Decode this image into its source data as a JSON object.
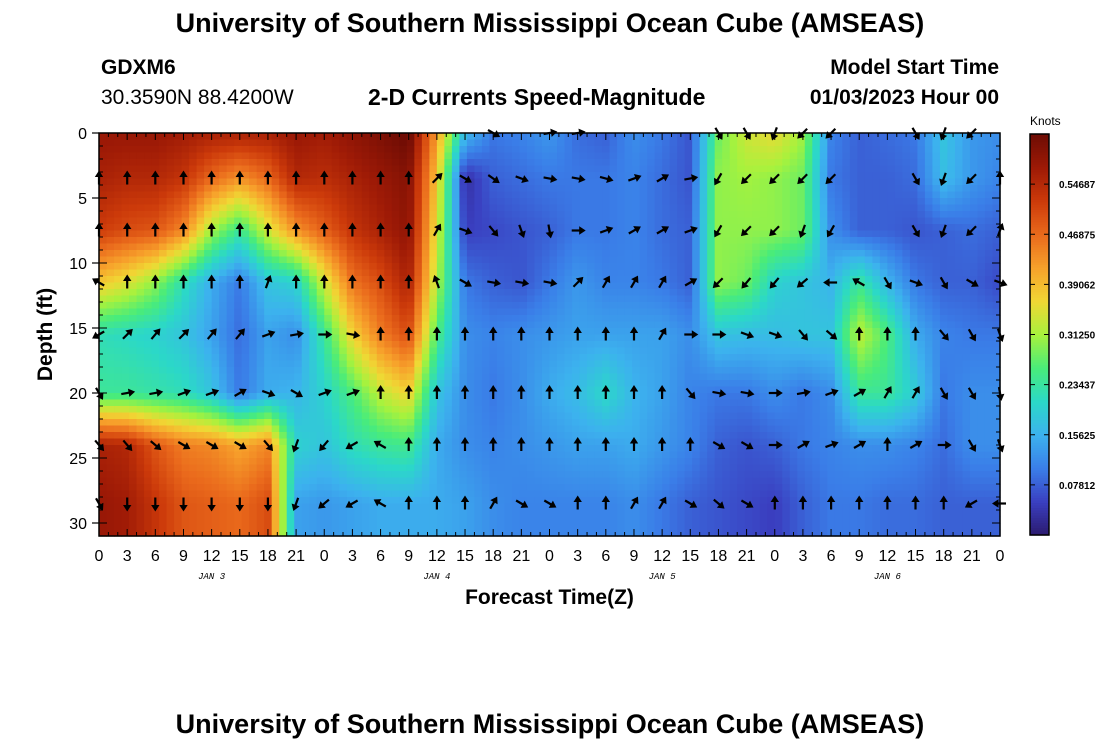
{
  "header": {
    "title": "University of Southern Mississippi Ocean Cube (AMSEAS)",
    "station": "GDXM6",
    "coords": "30.3590N  88.4200W",
    "subtitle": "2-D Currents Speed-Magnitude",
    "model_start_label": "Model Start Time",
    "model_start_value": "01/03/2023 Hour 00"
  },
  "footer": {
    "title": "University of Southern Mississippi Ocean Cube (AMSEAS)"
  },
  "chart_data": {
    "type": "heatmap",
    "title": "2-D Currents Speed-Magnitude",
    "xlabel": "Forecast Time(Z)",
    "ylabel": "Depth (ft)",
    "x_tick_labels": [
      "0",
      "3",
      "6",
      "9",
      "12",
      "15",
      "18",
      "21",
      "0",
      "3",
      "6",
      "9",
      "12",
      "15",
      "18",
      "21",
      "0",
      "3",
      "6",
      "9",
      "12",
      "15",
      "18",
      "21",
      "0",
      "3",
      "6",
      "9",
      "12",
      "15",
      "18",
      "21",
      "0"
    ],
    "date_labels": [
      {
        "label": "JAN 3",
        "hour": 12
      },
      {
        "label": "JAN 4",
        "hour": 36
      },
      {
        "label": "JAN 5",
        "hour": 60
      },
      {
        "label": "JAN 6",
        "hour": 84
      }
    ],
    "xlim_hours": [
      0,
      96
    ],
    "ylim_ft": [
      0,
      31
    ],
    "y_ticks": [
      0,
      5,
      10,
      15,
      20,
      25,
      30
    ],
    "colorbar": {
      "label": "Knots",
      "range": [
        0,
        0.625
      ],
      "tick_values": [
        0.07812,
        0.15625,
        0.23437,
        0.3125,
        0.39062,
        0.46875,
        0.54687
      ],
      "tick_labels": [
        "0.07812",
        "0.15625",
        "0.23437",
        "0.31250",
        "0.39062",
        "0.46875",
        "0.54687"
      ],
      "colors": [
        "#2b1a6e",
        "#3a3fc0",
        "#3a7ee8",
        "#3cb2ee",
        "#2bd8c8",
        "#49ec7a",
        "#a7f23d",
        "#f0d834",
        "#f7a12b",
        "#ea6a1c",
        "#cc3a0a",
        "#9e1a06",
        "#6e0c04"
      ]
    },
    "depth_levels_ft": [
      0,
      3.5,
      7.5,
      11.5,
      15.5,
      20,
      24,
      28.5
    ],
    "time_columns_hours": [
      0,
      3,
      6,
      9,
      12,
      15,
      18,
      21,
      24,
      27,
      30,
      33,
      36,
      39,
      42,
      45,
      48,
      51,
      54,
      57,
      60,
      63,
      66,
      69,
      72,
      75,
      78,
      81,
      84,
      87,
      90,
      93,
      96
    ],
    "speed_knots": [
      [
        0.58,
        0.58,
        0.58,
        0.57,
        0.56,
        0.56,
        0.56,
        0.58,
        0.57,
        0.59,
        0.61,
        0.63,
        0.42,
        0.17,
        0.1,
        0.11,
        0.13,
        0.09,
        0.08,
        0.12,
        0.1,
        0.07,
        0.28,
        0.34,
        0.36,
        0.31,
        0.11,
        0.08,
        0.09,
        0.1,
        0.18,
        0.13,
        0.12
      ],
      [
        0.56,
        0.55,
        0.55,
        0.53,
        0.47,
        0.43,
        0.47,
        0.55,
        0.54,
        0.56,
        0.58,
        0.6,
        0.38,
        0.03,
        0.08,
        0.09,
        0.1,
        0.1,
        0.1,
        0.11,
        0.09,
        0.07,
        0.3,
        0.31,
        0.3,
        0.28,
        0.1,
        0.08,
        0.08,
        0.09,
        0.17,
        0.13,
        0.11
      ],
      [
        0.52,
        0.5,
        0.49,
        0.44,
        0.31,
        0.24,
        0.34,
        0.43,
        0.48,
        0.53,
        0.56,
        0.59,
        0.35,
        0.05,
        0.06,
        0.07,
        0.08,
        0.1,
        0.1,
        0.11,
        0.09,
        0.08,
        0.3,
        0.3,
        0.3,
        0.28,
        0.12,
        0.08,
        0.08,
        0.07,
        0.08,
        0.09,
        0.08
      ],
      [
        0.38,
        0.35,
        0.3,
        0.22,
        0.15,
        0.1,
        0.18,
        0.2,
        0.34,
        0.46,
        0.5,
        0.56,
        0.32,
        0.1,
        0.08,
        0.07,
        0.1,
        0.13,
        0.11,
        0.11,
        0.1,
        0.08,
        0.3,
        0.28,
        0.2,
        0.18,
        0.16,
        0.24,
        0.16,
        0.1,
        0.08,
        0.08,
        0.06
      ],
      [
        0.22,
        0.21,
        0.2,
        0.18,
        0.14,
        0.09,
        0.14,
        0.12,
        0.24,
        0.37,
        0.45,
        0.5,
        0.26,
        0.12,
        0.11,
        0.12,
        0.13,
        0.14,
        0.14,
        0.14,
        0.14,
        0.12,
        0.18,
        0.17,
        0.17,
        0.18,
        0.18,
        0.33,
        0.26,
        0.15,
        0.11,
        0.1,
        0.1
      ],
      [
        0.24,
        0.24,
        0.23,
        0.22,
        0.18,
        0.1,
        0.15,
        0.16,
        0.2,
        0.26,
        0.33,
        0.37,
        0.18,
        0.12,
        0.1,
        0.12,
        0.15,
        0.17,
        0.21,
        0.16,
        0.14,
        0.11,
        0.1,
        0.1,
        0.12,
        0.1,
        0.12,
        0.24,
        0.24,
        0.19,
        0.1,
        0.12,
        0.12
      ],
      [
        0.56,
        0.55,
        0.49,
        0.45,
        0.44,
        0.41,
        0.44,
        0.2,
        0.18,
        0.22,
        0.24,
        0.25,
        0.15,
        0.12,
        0.11,
        0.12,
        0.13,
        0.14,
        0.14,
        0.15,
        0.13,
        0.11,
        0.08,
        0.07,
        0.08,
        0.1,
        0.11,
        0.12,
        0.12,
        0.11,
        0.09,
        0.12,
        0.12
      ],
      [
        0.58,
        0.57,
        0.53,
        0.49,
        0.48,
        0.47,
        0.5,
        0.14,
        0.13,
        0.14,
        0.15,
        0.15,
        0.15,
        0.14,
        0.12,
        0.11,
        0.11,
        0.11,
        0.11,
        0.12,
        0.1,
        0.08,
        0.07,
        0.06,
        0.05,
        0.08,
        0.1,
        0.1,
        0.09,
        0.09,
        0.08,
        0.08,
        0.08
      ]
    ],
    "direction_deg": [
      [
        null,
        null,
        null,
        null,
        null,
        null,
        null,
        null,
        null,
        null,
        null,
        null,
        null,
        null,
        120,
        null,
        80,
        80,
        null,
        null,
        null,
        null,
        150,
        150,
        200,
        225,
        225,
        null,
        null,
        150,
        200,
        225,
        null
      ],
      [
        0,
        0,
        0,
        0,
        0,
        0,
        0,
        0,
        0,
        0,
        0,
        0,
        45,
        120,
        125,
        110,
        100,
        100,
        105,
        70,
        60,
        80,
        210,
        225,
        225,
        225,
        225,
        null,
        null,
        150,
        200,
        225,
        0
      ],
      [
        0,
        0,
        0,
        0,
        0,
        0,
        0,
        0,
        0,
        0,
        0,
        0,
        30,
        110,
        140,
        160,
        170,
        90,
        70,
        60,
        60,
        70,
        210,
        225,
        225,
        200,
        210,
        null,
        null,
        150,
        200,
        225,
        20
      ],
      [
        300,
        0,
        0,
        0,
        0,
        0,
        20,
        0,
        0,
        0,
        0,
        0,
        340,
        120,
        100,
        100,
        100,
        45,
        30,
        30,
        30,
        60,
        225,
        220,
        220,
        230,
        270,
        300,
        150,
        110,
        150,
        120,
        110
      ],
      [
        240,
        45,
        40,
        45,
        40,
        40,
        70,
        80,
        90,
        100,
        0,
        0,
        0,
        0,
        0,
        0,
        0,
        0,
        0,
        0,
        30,
        90,
        90,
        110,
        110,
        140,
        130,
        0,
        0,
        0,
        140,
        150,
        160
      ],
      [
        150,
        80,
        80,
        70,
        70,
        60,
        110,
        120,
        70,
        70,
        0,
        0,
        0,
        0,
        0,
        0,
        0,
        0,
        0,
        0,
        0,
        140,
        100,
        100,
        90,
        80,
        70,
        60,
        30,
        30,
        150,
        150,
        170
      ],
      [
        140,
        140,
        130,
        120,
        120,
        120,
        140,
        200,
        220,
        240,
        300,
        0,
        0,
        0,
        0,
        0,
        0,
        0,
        0,
        0,
        0,
        0,
        120,
        120,
        90,
        60,
        70,
        60,
        0,
        60,
        90,
        150,
        160
      ],
      [
        150,
        180,
        180,
        180,
        180,
        180,
        180,
        200,
        230,
        240,
        300,
        0,
        0,
        0,
        30,
        120,
        120,
        0,
        0,
        30,
        30,
        120,
        130,
        120,
        0,
        0,
        0,
        0,
        0,
        0,
        0,
        240,
        270
      ]
    ]
  }
}
